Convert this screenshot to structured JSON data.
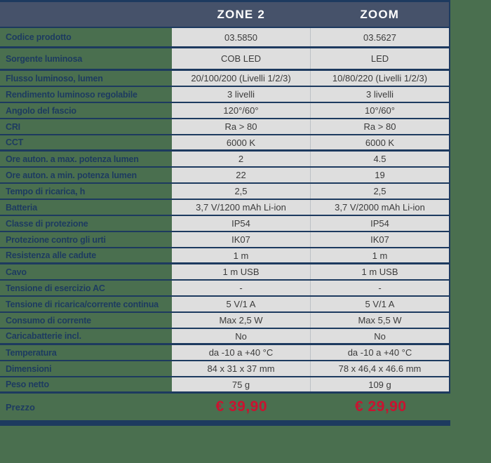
{
  "colors": {
    "page_background": "#4a6f4f",
    "header_background": "#46526a",
    "separator_navy": "#1d3a5f",
    "cell_background": "#dedede",
    "cell_text": "#3b3b3b",
    "label_text": "#1d3b60",
    "header_text": "#ffffff",
    "price_red": "#ca1230"
  },
  "header": {
    "columns": [
      "ZONE 2",
      "ZOOM"
    ]
  },
  "rows": [
    {
      "label": "Codice prodotto",
      "zone2": "03.5850",
      "zoom": "03.5627",
      "section_end": true
    },
    {
      "label": "Sorgente luminosa",
      "zone2": "COB LED",
      "zoom": "LED",
      "section_end": true
    },
    {
      "label": "Flusso luminoso, lumen",
      "zone2": "20/100/200  (Livelli 1/2/3)",
      "zoom": "10/80/220 (Livelli 1/2/3)",
      "section_end": false
    },
    {
      "label": "Rendimento luminoso regolabile",
      "zone2": "3 livelli",
      "zoom": "3 livelli",
      "section_end": false
    },
    {
      "label": "Angolo del fascio",
      "zone2": "120°/60°",
      "zoom": "10°/60°",
      "section_end": false
    },
    {
      "label": "CRI",
      "zone2": "Ra > 80",
      "zoom": "Ra > 80",
      "section_end": false
    },
    {
      "label": "CCT",
      "zone2": "6000 K",
      "zoom": "6000 K",
      "section_end": true
    },
    {
      "label": "Ore auton. a max. potenza lumen",
      "zone2": "2",
      "zoom": "4.5",
      "section_end": false
    },
    {
      "label": "Ore auton. a min. potenza lumen",
      "zone2": "22",
      "zoom": "19",
      "section_end": false
    },
    {
      "label": "Tempo di ricarica, h",
      "zone2": "2,5",
      "zoom": "2,5",
      "section_end": false
    },
    {
      "label": "Batteria",
      "zone2": "3,7 V/1200 mAh Li-ion",
      "zoom": "3,7 V/2000 mAh Li-ion",
      "section_end": false
    },
    {
      "label": "Classe di protezione",
      "zone2": "IP54",
      "zoom": "IP54",
      "section_end": false
    },
    {
      "label": "Protezione contro gli urti",
      "zone2": "IK07",
      "zoom": "IK07",
      "section_end": false
    },
    {
      "label": "Resistenza alle cadute",
      "zone2": "1 m",
      "zoom": "1 m",
      "section_end": true
    },
    {
      "label": "Cavo",
      "zone2": "1 m USB",
      "zoom": "1 m USB",
      "section_end": false
    },
    {
      "label": "Tensione di esercizio AC",
      "zone2": "-",
      "zoom": "-",
      "section_end": false
    },
    {
      "label": "Tensione di ricarica/corrente continua",
      "zone2": "5 V/1 A",
      "zoom": "5 V/1 A",
      "section_end": false
    },
    {
      "label": "Consumo di corrente",
      "zone2": "Max 2,5 W",
      "zoom": "Max 5,5 W",
      "section_end": false
    },
    {
      "label": "Caricabatterie incl.",
      "zone2": "No",
      "zoom": "No",
      "section_end": true
    },
    {
      "label": "Temperatura",
      "zone2": "da -10 a +40 °C",
      "zoom": "da -10 a +40 °C",
      "section_end": false
    },
    {
      "label": "Dimensioni",
      "zone2": "84 x 31 x 37 mm",
      "zoom": "78 x 46,4 x 46.6 mm",
      "section_end": false
    },
    {
      "label": "Peso netto",
      "zone2": "75 g",
      "zoom": "109 g",
      "section_end": true
    }
  ],
  "price_row": {
    "label": "Prezzo",
    "zone2": "€ 39,90",
    "zoom": "€ 29,90"
  }
}
